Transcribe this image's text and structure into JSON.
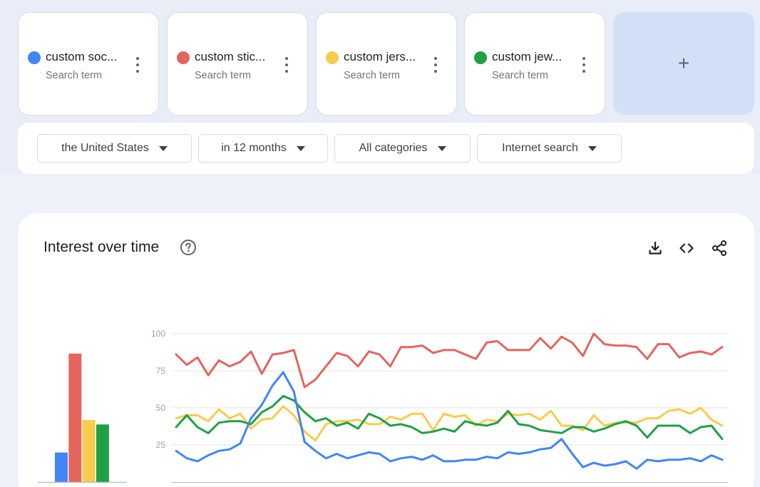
{
  "terms": [
    {
      "label": "custom soc...",
      "sub": "Search term",
      "color": "#4285f4"
    },
    {
      "label": "custom stic...",
      "sub": "Search term",
      "color": "#e2655e"
    },
    {
      "label": "custom jers...",
      "sub": "Search term",
      "color": "#f7cb4d"
    },
    {
      "label": "custom jew...",
      "sub": "Search term",
      "color": "#1fa045"
    }
  ],
  "add_label": "+",
  "filters": {
    "region": "the United States",
    "time": "in 12 months",
    "category": "All categories",
    "search_type": "Internet search"
  },
  "chart": {
    "title": "Interest over time",
    "icons": [
      "help-icon",
      "download-icon",
      "embed-icon",
      "share-icon"
    ]
  },
  "chart_data": [
    {
      "type": "bar",
      "categories": [
        "custom soc...",
        "custom stic...",
        "custom jers...",
        "custom jew..."
      ],
      "values": [
        20,
        87,
        42,
        39
      ],
      "colors": [
        "#4285f4",
        "#e2655e",
        "#f7cb4d",
        "#1fa045"
      ],
      "ylim": [
        0,
        100
      ]
    },
    {
      "type": "line",
      "ylim": [
        0,
        100
      ],
      "yticks": [
        25,
        50,
        75,
        100
      ],
      "grid": true,
      "series": [
        {
          "name": "custom stic...",
          "color": "#e2655e",
          "values": [
            86,
            79,
            84,
            72,
            82,
            78,
            81,
            88,
            73,
            86,
            87,
            89,
            64,
            69,
            78,
            87,
            85,
            78,
            88,
            86,
            78,
            91,
            91,
            92,
            87,
            89,
            89,
            86,
            83,
            94,
            95,
            89,
            89,
            89,
            97,
            90,
            98,
            94,
            85,
            100,
            93,
            92,
            92,
            91,
            83,
            93,
            93,
            84,
            87,
            88,
            86,
            91
          ]
        },
        {
          "name": "custom jers...",
          "color": "#f7cb4d",
          "values": [
            43,
            45,
            45,
            41,
            49,
            43,
            46,
            36,
            42,
            43,
            51,
            45,
            34,
            28,
            39,
            41,
            41,
            42,
            39,
            39,
            44,
            42,
            46,
            46,
            35,
            46,
            44,
            45,
            38,
            42,
            41,
            46,
            45,
            46,
            42,
            48,
            38,
            38,
            35,
            45,
            38,
            40,
            40,
            40,
            43,
            43,
            48,
            49,
            46,
            50,
            42,
            38
          ]
        },
        {
          "name": "custom jew...",
          "color": "#1fa045",
          "values": [
            37,
            45,
            37,
            33,
            40,
            41,
            41,
            39,
            47,
            51,
            58,
            55,
            47,
            41,
            43,
            38,
            40,
            36,
            46,
            43,
            38,
            39,
            37,
            33,
            34,
            36,
            34,
            41,
            39,
            38,
            40,
            48,
            39,
            38,
            35,
            34,
            33,
            37,
            37,
            34,
            36,
            39,
            41,
            38,
            30,
            38,
            38,
            38,
            33,
            37,
            38,
            29
          ]
        },
        {
          "name": "custom soc...",
          "color": "#4285f4",
          "values": [
            21,
            16,
            14,
            18,
            21,
            22,
            26,
            43,
            52,
            65,
            74,
            61,
            27,
            21,
            16,
            19,
            16,
            18,
            20,
            19,
            14,
            16,
            17,
            15,
            18,
            14,
            14,
            15,
            15,
            17,
            16,
            20,
            19,
            20,
            22,
            23,
            29,
            19,
            10,
            13,
            11,
            12,
            14,
            9,
            15,
            14,
            15,
            15,
            16,
            14,
            18,
            15
          ]
        }
      ]
    }
  ]
}
